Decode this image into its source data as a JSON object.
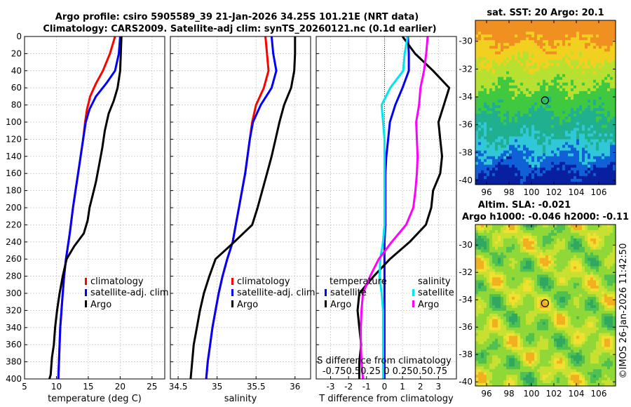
{
  "title_line1": "Argo profile: csiro 5905589_39 21-Jan-2026 34.25S 101.21E (NRT data)",
  "title_line2": "Climatology: CARS2009. Satellite-adj clim: synTS_20260121.nc (0.1d earlier)",
  "colors": {
    "climatology": "#ff0000",
    "satellite": "#0000ff",
    "argo": "#000000",
    "sal_satellite": "#00e5ee",
    "sal_argo": "#ff00ff"
  },
  "chart_data": [
    {
      "type": "line",
      "title": "",
      "xlabel": "temperature (deg C)",
      "ylabel": "",
      "xlim": [
        5,
        27
      ],
      "ylim": [
        0,
        400
      ],
      "xticks": [
        "5",
        "10",
        "15",
        "20",
        "25"
      ],
      "xtick_values": [
        5,
        10,
        15,
        20,
        25
      ],
      "yticks": [
        "0",
        "20",
        "40",
        "60",
        "80",
        "100",
        "120",
        "140",
        "160",
        "180",
        "200",
        "220",
        "240",
        "260",
        "280",
        "300",
        "320",
        "340",
        "360",
        "380",
        "400"
      ],
      "legend": [
        "climatology",
        "satellite-adj. clim",
        "Argo"
      ],
      "series": [
        {
          "name": "climatology",
          "color": "#ff0000",
          "x": [
            19.2,
            18.4,
            17.3,
            16.2,
            15.3,
            14.8,
            14.5,
            14.2,
            13.8,
            13.4,
            13.0,
            12.6,
            12.1,
            11.5,
            11.2,
            11.0,
            10.8,
            10.6,
            10.5,
            10.4,
            10.3
          ],
          "y": [
            0,
            20,
            40,
            55,
            70,
            85,
            100,
            120,
            140,
            160,
            180,
            200,
            230,
            260,
            280,
            300,
            320,
            340,
            360,
            380,
            400
          ]
        },
        {
          "name": "satellite-adj. clim",
          "color": "#0000ff",
          "x": [
            20.0,
            19.8,
            19.2,
            17.8,
            16.2,
            15.2,
            14.6,
            14.2,
            13.8,
            13.4,
            13.0,
            12.6,
            12.1,
            11.5,
            11.2,
            11.0,
            10.8,
            10.6,
            10.5,
            10.4,
            10.3
          ],
          "y": [
            0,
            20,
            40,
            55,
            70,
            85,
            100,
            120,
            140,
            160,
            180,
            200,
            230,
            260,
            280,
            300,
            320,
            340,
            360,
            380,
            400
          ]
        },
        {
          "name": "Argo",
          "color": "#000000",
          "x": [
            20.2,
            20.1,
            20.0,
            19.6,
            19.0,
            18.2,
            17.6,
            17.2,
            16.7,
            16.2,
            15.7,
            15.2,
            14.9,
            14.3,
            12.8,
            11.6,
            11.0,
            10.5,
            10.1,
            9.8,
            9.6,
            9.3,
            9.2,
            9.1,
            8.9
          ],
          "y": [
            0,
            20,
            40,
            60,
            75,
            90,
            110,
            130,
            150,
            170,
            185,
            200,
            215,
            230,
            245,
            260,
            280,
            300,
            320,
            340,
            360,
            375,
            385,
            395,
            400
          ]
        }
      ]
    },
    {
      "type": "line",
      "xlabel": "salinity",
      "ylabel": "",
      "xlim": [
        34.4,
        36.2
      ],
      "ylim": [
        0,
        400
      ],
      "xticks": [
        "34.5",
        "35",
        "35.5",
        "36"
      ],
      "xtick_values": [
        34.5,
        35,
        35.5,
        36
      ],
      "legend": [
        "climatology",
        "satellite-adj. clim",
        "Argo"
      ],
      "series": [
        {
          "name": "climatology",
          "color": "#ff0000",
          "x": [
            35.62,
            35.64,
            35.66,
            35.6,
            35.5,
            35.45,
            35.42,
            35.39,
            35.36,
            35.32,
            35.28,
            35.24,
            35.2,
            35.13,
            35.07,
            35.02,
            34.98,
            34.94,
            34.91,
            34.88,
            34.86
          ],
          "y": [
            0,
            20,
            40,
            60,
            80,
            100,
            120,
            140,
            160,
            180,
            200,
            220,
            240,
            260,
            280,
            300,
            320,
            340,
            360,
            380,
            400
          ]
        },
        {
          "name": "satellite-adj. clim",
          "color": "#0000ff",
          "x": [
            35.7,
            35.72,
            35.76,
            35.7,
            35.56,
            35.46,
            35.42,
            35.39,
            35.36,
            35.32,
            35.28,
            35.24,
            35.2,
            35.13,
            35.07,
            35.02,
            34.98,
            34.94,
            34.91,
            34.88,
            34.86
          ],
          "y": [
            0,
            20,
            40,
            60,
            80,
            100,
            120,
            140,
            160,
            180,
            200,
            220,
            240,
            260,
            280,
            300,
            320,
            340,
            360,
            380,
            400
          ]
        },
        {
          "name": "Argo",
          "color": "#000000",
          "x": [
            36.0,
            36.0,
            35.99,
            35.95,
            35.86,
            35.8,
            35.75,
            35.7,
            35.64,
            35.58,
            35.52,
            35.45,
            35.22,
            34.98,
            34.9,
            34.83,
            34.78,
            34.74,
            34.7,
            34.68,
            34.66
          ],
          "y": [
            0,
            20,
            40,
            60,
            80,
            100,
            120,
            140,
            160,
            180,
            200,
            220,
            240,
            260,
            280,
            300,
            320,
            340,
            360,
            380,
            400
          ]
        }
      ]
    },
    {
      "type": "line",
      "xlabel": "T difference from climatology",
      "ylabel": "",
      "xlim": [
        -3.8,
        4.0
      ],
      "ylim": [
        0,
        400
      ],
      "xticks": [
        "-3",
        "-2",
        "-1",
        "0",
        "1",
        "2",
        "3"
      ],
      "xtick_values": [
        -3,
        -2,
        -1,
        0,
        1,
        2,
        3
      ],
      "secondary_label": "S difference from climatology",
      "secondary_ticks": [
        "-0.75",
        "-0.5",
        "-0.25",
        "0",
        "0.25",
        "0.5",
        "0.75"
      ],
      "secondary_ticks_printed": "-0.750.50.25 0  0.250.50.75",
      "legend_temperature_title": "temperature",
      "legend_salinity_title": "salinity",
      "legend": [
        "satellite",
        "Argo",
        "satellite",
        "Argo"
      ],
      "series": [
        {
          "name": "temperature satellite",
          "color": "#0000ff",
          "x": [
            1.3,
            1.35,
            1.35,
            1.0,
            0.6,
            0.3,
            0.2,
            0.1,
            0.05,
            0.05,
            0.05,
            0.05,
            0.0,
            0.0,
            0.0,
            0.0,
            0.0,
            0.0,
            0.0,
            0.0,
            0.0
          ],
          "y": [
            0,
            20,
            40,
            60,
            80,
            100,
            120,
            140,
            160,
            180,
            200,
            220,
            240,
            260,
            280,
            300,
            320,
            340,
            360,
            380,
            400
          ]
        },
        {
          "name": "temperature Argo",
          "color": "#000000",
          "x": [
            1.0,
            1.7,
            2.7,
            3.6,
            3.3,
            3.0,
            3.1,
            3.2,
            3.1,
            2.7,
            2.6,
            2.3,
            1.4,
            0.3,
            -0.6,
            -1.4,
            -1.5,
            -1.4,
            -1.3,
            -1.4,
            -1.4
          ],
          "y": [
            0,
            20,
            40,
            60,
            80,
            100,
            120,
            140,
            160,
            180,
            200,
            220,
            240,
            260,
            280,
            300,
            320,
            340,
            360,
            380,
            400
          ]
        },
        {
          "name": "salinity satellite",
          "color": "#00e5ee",
          "x": [
            0.32,
            0.28,
            0.26,
            0.08,
            -0.04,
            -0.02,
            0.0,
            0.0,
            0.0,
            0.0,
            0.0,
            0.0,
            -0.02,
            -0.06,
            -0.07,
            -0.04,
            -0.02,
            -0.02,
            -0.02,
            -0.02,
            -0.02
          ],
          "y": [
            0,
            20,
            40,
            60,
            80,
            100,
            120,
            140,
            160,
            180,
            200,
            220,
            240,
            260,
            280,
            300,
            320,
            340,
            360,
            380,
            400
          ]
        },
        {
          "name": "salinity Argo",
          "color": "#ff00ff",
          "x": [
            0.6,
            0.58,
            0.55,
            0.5,
            0.48,
            0.44,
            0.45,
            0.46,
            0.45,
            0.43,
            0.4,
            0.3,
            0.1,
            -0.08,
            -0.2,
            -0.3,
            -0.32,
            -0.33,
            -0.33,
            -0.32,
            -0.3
          ],
          "y": [
            0,
            20,
            40,
            60,
            80,
            100,
            120,
            140,
            160,
            180,
            200,
            220,
            240,
            260,
            280,
            300,
            320,
            340,
            360,
            380,
            400
          ]
        }
      ]
    },
    {
      "type": "heatmap",
      "title": "sat. SST: 20 Argo: 20.1",
      "xlim": [
        95,
        107.5
      ],
      "ylim": [
        -40.3,
        -28.5
      ],
      "xticks": [
        "96",
        "98",
        "100",
        "102",
        "104",
        "106"
      ],
      "xtick_values": [
        96,
        98,
        100,
        102,
        104,
        106
      ],
      "yticks": [
        "-30",
        "-32",
        "-34",
        "-36",
        "-38",
        "-40"
      ],
      "ytick_values": [
        -30,
        -32,
        -34,
        -36,
        -38,
        -40
      ],
      "marker": {
        "lon": 101.21,
        "lat": -34.25
      }
    },
    {
      "type": "heatmap",
      "title": "Altim. SLA: -0.021",
      "subtitle": "Argo h1000: -0.046 h2000: -0.11",
      "xlim": [
        95,
        107.5
      ],
      "ylim": [
        -40.3,
        -28.5
      ],
      "xticks": [
        "96",
        "98",
        "100",
        "102",
        "104",
        "106"
      ],
      "xtick_values": [
        96,
        98,
        100,
        102,
        104,
        106
      ],
      "yticks": [
        "-30",
        "-32",
        "-34",
        "-36",
        "-38",
        "-40"
      ],
      "ytick_values": [
        -30,
        -32,
        -34,
        -36,
        -38,
        -40
      ],
      "marker": {
        "lon": 101.21,
        "lat": -34.25
      }
    }
  ],
  "watermark": "©IMOS 26-Jan-2026 11:42:50"
}
